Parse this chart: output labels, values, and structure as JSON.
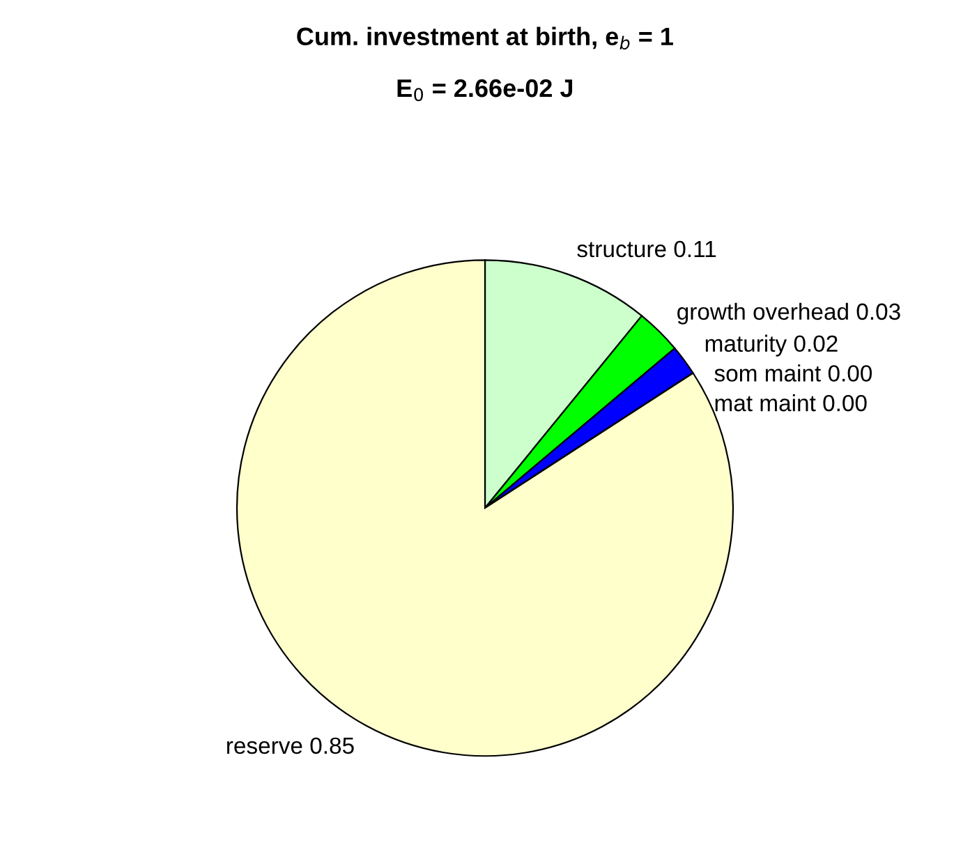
{
  "chart_data": {
    "type": "pie",
    "title": "Cum. investment at birth, e$_{b}$ = 1",
    "subtitle": "E$_{0}$ = 2.66e-02 J",
    "categories": [
      "structure",
      "growth overhead",
      "maturity",
      "som maint",
      "mat maint",
      "reserve"
    ],
    "values": [
      0.11,
      0.03,
      0.02,
      0.0,
      0.0,
      0.85
    ],
    "value_labels": [
      "0.11",
      "0.03",
      "0.02",
      "0.00",
      "0.00",
      "0.85"
    ],
    "colors": [
      "#ccffcc",
      "#00ff00",
      "#0000ff",
      "#ff0000",
      "#ff00ff",
      "#ffffcc"
    ],
    "legend": false
  }
}
